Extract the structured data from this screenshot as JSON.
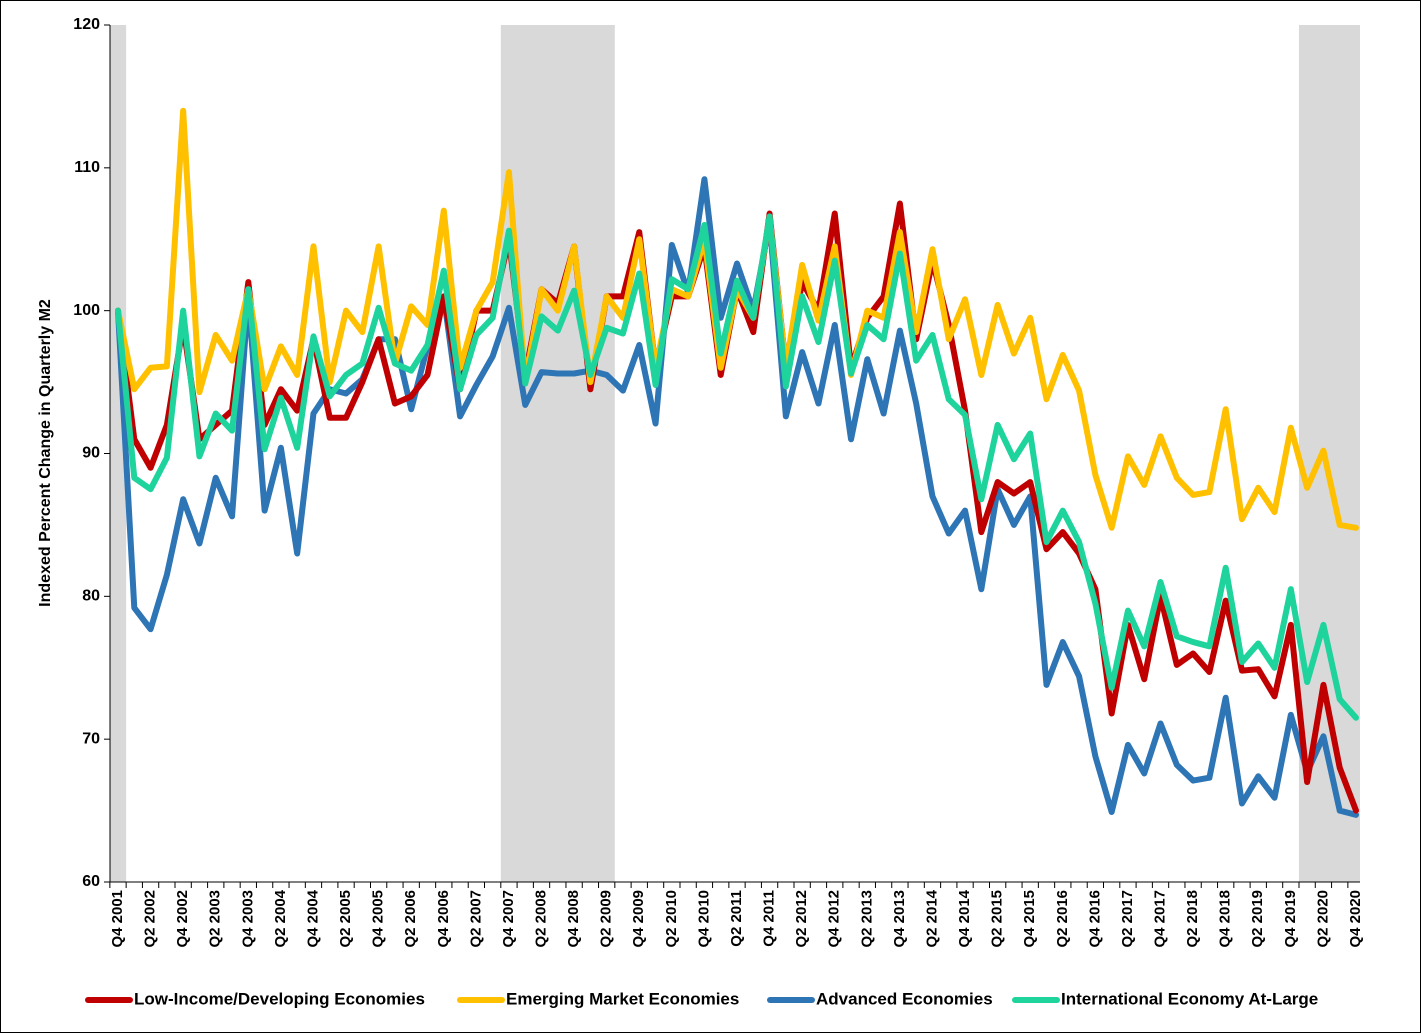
{
  "chart_data": {
    "type": "line",
    "y_label": "Indexed Percent Change in Quarterly M2",
    "categories": [
      "Q4 2001",
      null,
      "Q2 2002",
      null,
      "Q4 2002",
      null,
      "Q2 2003",
      null,
      "Q4 2003",
      null,
      "Q2 2004",
      null,
      "Q4 2004",
      null,
      "Q2 2005",
      null,
      "Q4 2005",
      null,
      "Q2 2006",
      null,
      "Q4 2006",
      null,
      "Q2 2007",
      null,
      "Q4 2007",
      null,
      "Q2 2008",
      null,
      "Q4 2008",
      null,
      "Q2 2009",
      null,
      "Q4 2009",
      null,
      "Q2 2010",
      null,
      "Q4 2010",
      null,
      "Q2 2011",
      null,
      "Q4 2011",
      null,
      "Q2 2012",
      null,
      "Q4 2012",
      null,
      "Q2 2013",
      null,
      "Q4 2013",
      null,
      "Q2 2014",
      null,
      "Q4 2014",
      null,
      "Q2 2015",
      null,
      "Q4 2015",
      null,
      "Q2 2016",
      null,
      "Q4 2016",
      null,
      "Q2 2017",
      null,
      "Q4 2017",
      null,
      "Q2 2018",
      null,
      "Q4 2018",
      null,
      "Q2 2019",
      null,
      "Q4 2019",
      null,
      "Q2 2020",
      null,
      "Q4 2020"
    ],
    "shaded_ranges": [
      [
        0,
        0
      ],
      [
        24,
        30
      ],
      [
        73,
        76
      ]
    ],
    "shade_color": "#d9d9d9",
    "series": [
      {
        "name": "Low-Income/Developing Economies",
        "color": "#c00000",
        "values": [
          100,
          91,
          89,
          92,
          99,
          91,
          92,
          93,
          102,
          92,
          94.5,
          93,
          98,
          92.5,
          92.5,
          95,
          98,
          93.5,
          94,
          95.5,
          101,
          94.5,
          100,
          100,
          105,
          95.5,
          101.5,
          100.5,
          104.5,
          94.5,
          101,
          101,
          105.5,
          96,
          101,
          101,
          104.5,
          95.5,
          101.5,
          98.5,
          106.8,
          96,
          102,
          100,
          106.8,
          96,
          99.5,
          101,
          107.5,
          98,
          103.5,
          99,
          93,
          84.5,
          88,
          87.2,
          88,
          83.3,
          84.5,
          83,
          80.5,
          71.8,
          78,
          74.2,
          80,
          75.2,
          76,
          74.7,
          79.7,
          74.8,
          74.9,
          73,
          78,
          67,
          73.8,
          68,
          65
        ]
      },
      {
        "name": "Emerging Market Economies",
        "color": "#ffc000",
        "values": [
          100,
          94.5,
          96,
          96.1,
          114,
          94.3,
          98.3,
          96.5,
          101.5,
          94.5,
          97.5,
          95.5,
          104.5,
          95,
          100,
          98.5,
          104.5,
          96.3,
          100.3,
          99,
          107,
          96,
          100,
          102,
          109.7,
          95,
          101.5,
          100,
          104.5,
          95,
          101,
          99.5,
          105,
          96,
          101.5,
          101,
          105,
          96,
          101.5,
          99.5,
          106.5,
          96,
          103.2,
          99.3,
          104.5,
          95.5,
          100,
          99.5,
          105.5,
          98.5,
          104.3,
          98,
          100.8,
          95.5,
          100.4,
          97,
          99.5,
          93.8,
          96.9,
          94.4,
          88.5,
          84.8,
          89.8,
          87.8,
          91.2,
          88.3,
          87.1,
          87.3,
          93.1,
          85.4,
          87.6,
          85.9,
          91.8,
          87.6,
          90.2,
          85,
          84.8
        ]
      },
      {
        "name": "Advanced Economies",
        "color": "#2e75b6",
        "values": [
          100,
          79.2,
          77.7,
          81.5,
          86.8,
          83.7,
          88.3,
          85.6,
          101,
          86,
          90.4,
          83,
          92.8,
          94.5,
          94.2,
          95.2,
          98,
          98,
          93.1,
          97.5,
          101,
          92.6,
          94.8,
          96.8,
          100.2,
          93.4,
          95.7,
          95.6,
          95.6,
          95.8,
          95.5,
          94.4,
          97.6,
          92.1,
          104.6,
          101.3,
          109.2,
          99.5,
          103.3,
          100,
          106.2,
          92.6,
          97.1,
          93.5,
          99,
          91,
          96.6,
          92.8,
          98.6,
          93.5,
          87,
          84.4,
          86,
          80.5,
          87.5,
          85,
          87,
          73.8,
          76.8,
          74.4,
          68.8,
          64.9,
          69.6,
          67.6,
          71.1,
          68.2,
          67.1,
          67.3,
          72.9,
          65.5,
          67.4,
          65.9,
          71.7,
          67.7,
          70.2,
          65,
          64.7
        ]
      },
      {
        "name": "International Economy At-Large",
        "color": "#1ed39c",
        "values": [
          100,
          88.3,
          87.5,
          89.7,
          100,
          89.8,
          92.8,
          91.6,
          101.5,
          90.3,
          93.9,
          90.4,
          98.2,
          94,
          95.5,
          96.3,
          100.2,
          96.3,
          95.8,
          97.6,
          102.8,
          94.5,
          98.3,
          99.5,
          105.6,
          94.9,
          99.6,
          98.6,
          101.4,
          95.5,
          98.8,
          98.4,
          102.6,
          94.8,
          102.2,
          101.5,
          106,
          97,
          102.1,
          99.5,
          106.6,
          94.7,
          101,
          97.8,
          103.5,
          95.6,
          99,
          98,
          104,
          96.5,
          98.3,
          93.8,
          92.7,
          86.8,
          92,
          89.6,
          91.4,
          83.8,
          86,
          83.8,
          79.5,
          73.6,
          79,
          76.5,
          81,
          77.2,
          76.8,
          76.5,
          82,
          75.4,
          76.7,
          75,
          80.5,
          74,
          78,
          72.8,
          71.5
        ]
      }
    ],
    "ylim": [
      60,
      120
    ],
    "yticks": [
      60,
      70,
      80,
      90,
      100,
      110,
      120
    ],
    "grid": false,
    "legend": "bottom"
  }
}
